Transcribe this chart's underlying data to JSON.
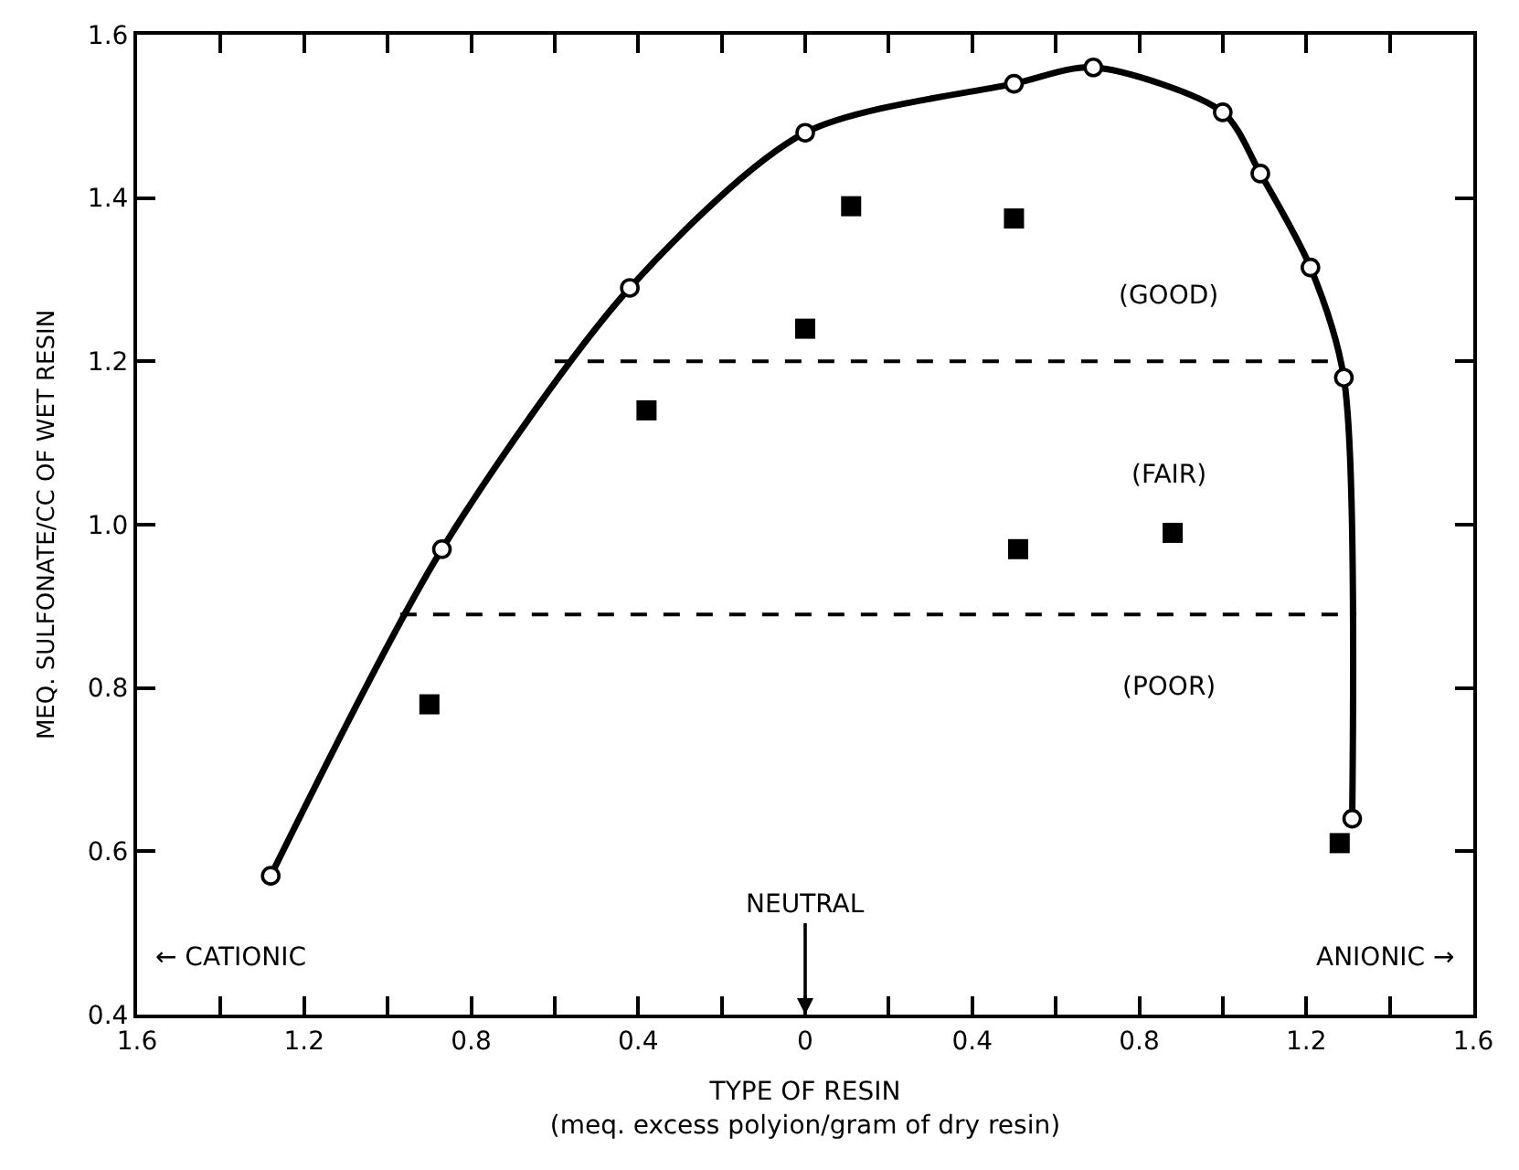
{
  "chart_data": {
    "type": "scatter",
    "xlabel": "TYPE OF RESIN\n(meq. excess polyion/gram of dry resin)",
    "ylabel": "MEQ. SULFONATE/CC OF WET RESIN",
    "xlim": [
      -1.6,
      1.6
    ],
    "xticks": [
      {
        "value": -1.6,
        "label": "1.6"
      },
      {
        "value": -1.4,
        "label": null
      },
      {
        "value": -1.2,
        "label": "1.2"
      },
      {
        "value": -1.0,
        "label": null
      },
      {
        "value": -0.8,
        "label": "0.8"
      },
      {
        "value": -0.6,
        "label": null
      },
      {
        "value": -0.4,
        "label": "0.4"
      },
      {
        "value": -0.2,
        "label": null
      },
      0,
      {
        "value": 0.2,
        "label": null
      },
      0.4,
      {
        "value": 0.6,
        "label": null
      },
      0.8,
      {
        "value": 1.0,
        "label": null
      },
      1.2,
      {
        "value": 1.4,
        "label": null
      },
      1.6
    ],
    "ylim": [
      0.4,
      1.6
    ],
    "yticks": [
      0.4,
      0.6,
      0.8,
      {
        "value": 1.0,
        "label": "1.0"
      },
      1.2,
      1.4,
      1.6
    ],
    "series": [
      {
        "type": "line",
        "color": "#000000",
        "marker": "circle",
        "line_style": "solid",
        "x": [
          -1.28,
          -0.87,
          -0.42,
          0,
          0.5,
          0.69,
          1.0,
          1.09,
          1.21,
          1.29,
          1.31
        ],
        "values": [
          0.57,
          0.97,
          1.29,
          1.48,
          1.54,
          1.56,
          1.505,
          1.43,
          1.315,
          1.18,
          0.64
        ]
      },
      {
        "color": "#000000",
        "marker": "square",
        "x": [
          -0.9,
          -0.38,
          0,
          0.11,
          0.5,
          0.51,
          0.88,
          1.28
        ],
        "values": [
          0.78,
          1.14,
          1.24,
          1.39,
          1.375,
          0.97,
          0.99,
          0.61
        ]
      },
      {
        "type": "line",
        "color": "#000000",
        "marker": "none",
        "line_style": "dashed",
        "x": [
          -0.6,
          1.27
        ],
        "values": [
          1.2,
          1.2
        ]
      },
      {
        "type": "line",
        "color": "#000000",
        "marker": "none",
        "line_style": "dashed",
        "x": [
          -0.97,
          1.32
        ],
        "values": [
          0.89,
          0.89
        ]
      }
    ],
    "annotations": [
      "(GOOD)",
      "(FAIR)",
      "(POOR)",
      "← CATIONIC",
      "ANIONIC →",
      "NEUTRAL"
    ]
  }
}
